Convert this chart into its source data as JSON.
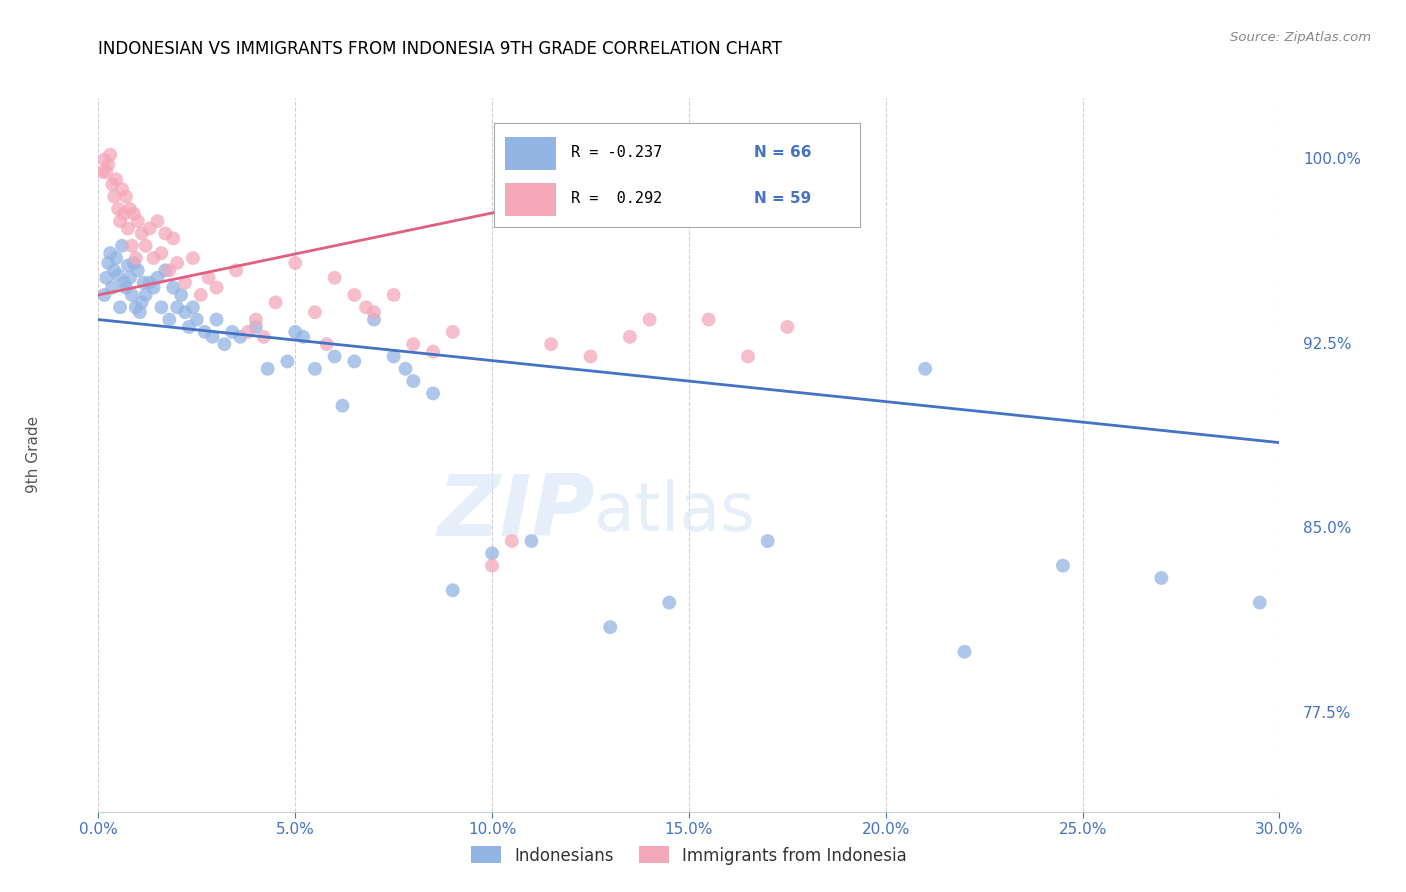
{
  "title": "INDONESIAN VS IMMIGRANTS FROM INDONESIA 9TH GRADE CORRELATION CHART",
  "source": "Source: ZipAtlas.com",
  "xlabel_vals": [
    0.0,
    5.0,
    10.0,
    15.0,
    20.0,
    25.0,
    30.0
  ],
  "ylabel_vals": [
    77.5,
    85.0,
    92.5,
    100.0
  ],
  "xmin": 0.0,
  "xmax": 30.0,
  "ymin": 73.5,
  "ymax": 102.5,
  "blue_color": "#92b4e3",
  "pink_color": "#f4a7b9",
  "trendline_blue": "#4472c4",
  "trendline_pink": "#e06080",
  "ylabel": "9th Grade",
  "watermark_zip": "ZIP",
  "watermark_atlas": "atlas",
  "indonesians_label": "Indonesians",
  "immigrants_label": "Immigrants from Indonesia",
  "blue_trendline_x0": 0.0,
  "blue_trendline_y0": 93.5,
  "blue_trendline_x1": 30.0,
  "blue_trendline_y1": 88.5,
  "pink_trendline_x0": 0.0,
  "pink_trendline_y0": 94.5,
  "pink_trendline_x1": 18.0,
  "pink_trendline_y1": 100.5,
  "blue_scatter_x": [
    0.15,
    0.2,
    0.25,
    0.3,
    0.35,
    0.4,
    0.45,
    0.5,
    0.55,
    0.6,
    0.65,
    0.7,
    0.75,
    0.8,
    0.85,
    0.9,
    0.95,
    1.0,
    1.05,
    1.1,
    1.15,
    1.2,
    1.3,
    1.4,
    1.5,
    1.6,
    1.7,
    1.8,
    1.9,
    2.0,
    2.1,
    2.2,
    2.3,
    2.4,
    2.5,
    2.7,
    2.9,
    3.0,
    3.2,
    3.4,
    3.6,
    4.0,
    4.3,
    4.8,
    5.0,
    5.5,
    6.0,
    6.5,
    7.0,
    7.5,
    8.0,
    9.0,
    10.0,
    11.0,
    13.0,
    14.5,
    17.0,
    21.0,
    22.0,
    24.5,
    27.0,
    29.5,
    5.2,
    6.2,
    7.8,
    8.5
  ],
  "blue_scatter_y": [
    94.5,
    95.2,
    95.8,
    96.2,
    94.8,
    95.5,
    96.0,
    95.3,
    94.0,
    96.5,
    95.0,
    94.8,
    95.7,
    95.2,
    94.5,
    95.8,
    94.0,
    95.5,
    93.8,
    94.2,
    95.0,
    94.5,
    95.0,
    94.8,
    95.2,
    94.0,
    95.5,
    93.5,
    94.8,
    94.0,
    94.5,
    93.8,
    93.2,
    94.0,
    93.5,
    93.0,
    92.8,
    93.5,
    92.5,
    93.0,
    92.8,
    93.2,
    91.5,
    91.8,
    93.0,
    91.5,
    92.0,
    91.8,
    93.5,
    92.0,
    91.0,
    82.5,
    84.0,
    84.5,
    81.0,
    82.0,
    84.5,
    91.5,
    80.0,
    83.5,
    83.0,
    82.0,
    92.8,
    90.0,
    91.5,
    90.5
  ],
  "pink_scatter_x": [
    0.1,
    0.15,
    0.2,
    0.25,
    0.3,
    0.35,
    0.4,
    0.45,
    0.5,
    0.55,
    0.6,
    0.65,
    0.7,
    0.75,
    0.8,
    0.85,
    0.9,
    0.95,
    1.0,
    1.1,
    1.2,
    1.3,
    1.4,
    1.5,
    1.6,
    1.7,
    1.8,
    1.9,
    2.0,
    2.2,
    2.4,
    2.6,
    2.8,
    3.0,
    3.5,
    4.0,
    4.5,
    5.0,
    5.5,
    6.0,
    6.5,
    7.0,
    8.0,
    9.0,
    10.5,
    11.5,
    13.5,
    15.5,
    16.5,
    17.5,
    3.8,
    5.8,
    6.8,
    8.5,
    10.0,
    12.5,
    14.0,
    4.2,
    7.5
  ],
  "pink_scatter_y": [
    99.5,
    100.0,
    99.5,
    99.8,
    100.2,
    99.0,
    98.5,
    99.2,
    98.0,
    97.5,
    98.8,
    97.8,
    98.5,
    97.2,
    98.0,
    96.5,
    97.8,
    96.0,
    97.5,
    97.0,
    96.5,
    97.2,
    96.0,
    97.5,
    96.2,
    97.0,
    95.5,
    96.8,
    95.8,
    95.0,
    96.0,
    94.5,
    95.2,
    94.8,
    95.5,
    93.5,
    94.2,
    95.8,
    93.8,
    95.2,
    94.5,
    93.8,
    92.5,
    93.0,
    84.5,
    92.5,
    92.8,
    93.5,
    92.0,
    93.2,
    93.0,
    92.5,
    94.0,
    92.2,
    83.5,
    92.0,
    93.5,
    92.8,
    94.5
  ]
}
